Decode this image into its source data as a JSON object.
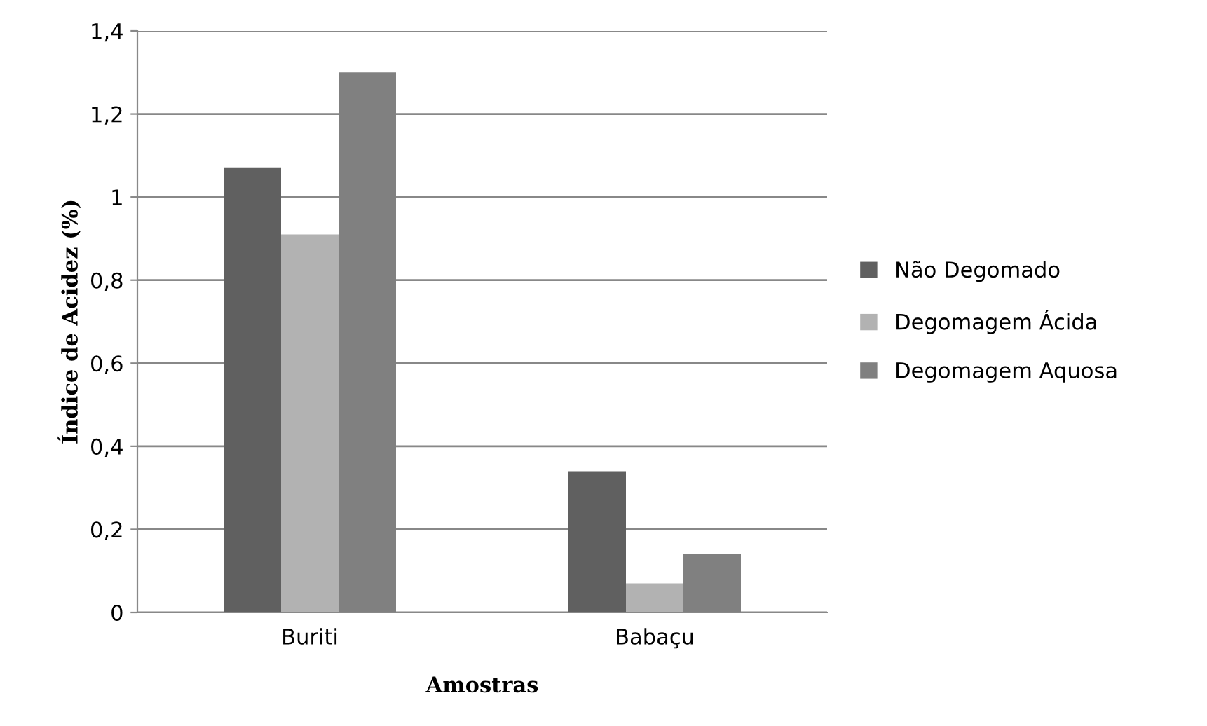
{
  "chart_data": {
    "type": "bar",
    "xlabel": "Amostras",
    "ylabel": "Índice de Acidez (%)",
    "categories": [
      "Buriti",
      "Babaçu"
    ],
    "series": [
      {
        "name": "Não Degomado",
        "color": "#606060",
        "values": [
          1.07,
          0.34
        ]
      },
      {
        "name": "Degomagem Ácida",
        "color": "#b2b2b2",
        "values": [
          0.91,
          0.07
        ]
      },
      {
        "name": "Degomagem Aquosa",
        "color": "#808080",
        "values": [
          1.3,
          0.14
        ]
      }
    ],
    "ylim": [
      0,
      1.4
    ],
    "yticks": [
      0,
      {
        "value": 0.2,
        "label": "0,2"
      },
      {
        "value": 0.4,
        "label": "0,4"
      },
      {
        "value": 0.6,
        "label": "0,6"
      },
      {
        "value": 0.8,
        "label": "0,8"
      },
      1,
      {
        "value": 1.2,
        "label": "1,2"
      },
      {
        "value": 1.4,
        "label": "1,4"
      }
    ],
    "grid": "y",
    "legend": "right"
  }
}
